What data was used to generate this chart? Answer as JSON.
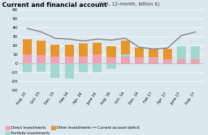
{
  "title": "Current and financial account",
  "title_suffix": " (Net, 12-month, billion $)",
  "x_labels": [
    "Aug. 15",
    "Oct. 15",
    "Dec. 15",
    "Feb 16",
    "Apr. 16",
    "June 16",
    "Aug. 16",
    "Oct. 16",
    "Dec. 16",
    "Feb 17",
    "Apr. 17",
    "June 17",
    "Aug. 17"
  ],
  "direct": [
    10,
    9,
    8,
    8,
    8,
    10,
    7,
    8,
    7,
    6,
    5,
    5,
    5
  ],
  "portfolio": [
    -10,
    -9,
    -16,
    -17,
    -10,
    -10,
    -6,
    2,
    0,
    1,
    0,
    14,
    14
  ],
  "other": [
    17,
    16,
    13,
    13,
    14,
    13,
    12,
    15,
    11,
    9,
    11,
    0,
    0
  ],
  "current_account": [
    39,
    35,
    28,
    27,
    25,
    27,
    26,
    28,
    18,
    16,
    17,
    31,
    35
  ],
  "color_direct": "#f4a0b0",
  "color_portfolio": "#a0d8cf",
  "color_other": "#e8952a",
  "color_line": "#888888",
  "bg_color": "#dce8f0",
  "ylim": [
    -30,
    60
  ],
  "yticks": [
    -30,
    -20,
    -10,
    0,
    10,
    20,
    30,
    40,
    50,
    60
  ],
  "ytick_labels": [
    "-30",
    "-20",
    "-10",
    "0",
    "10",
    "20",
    "30",
    "40",
    "50",
    "60"
  ]
}
